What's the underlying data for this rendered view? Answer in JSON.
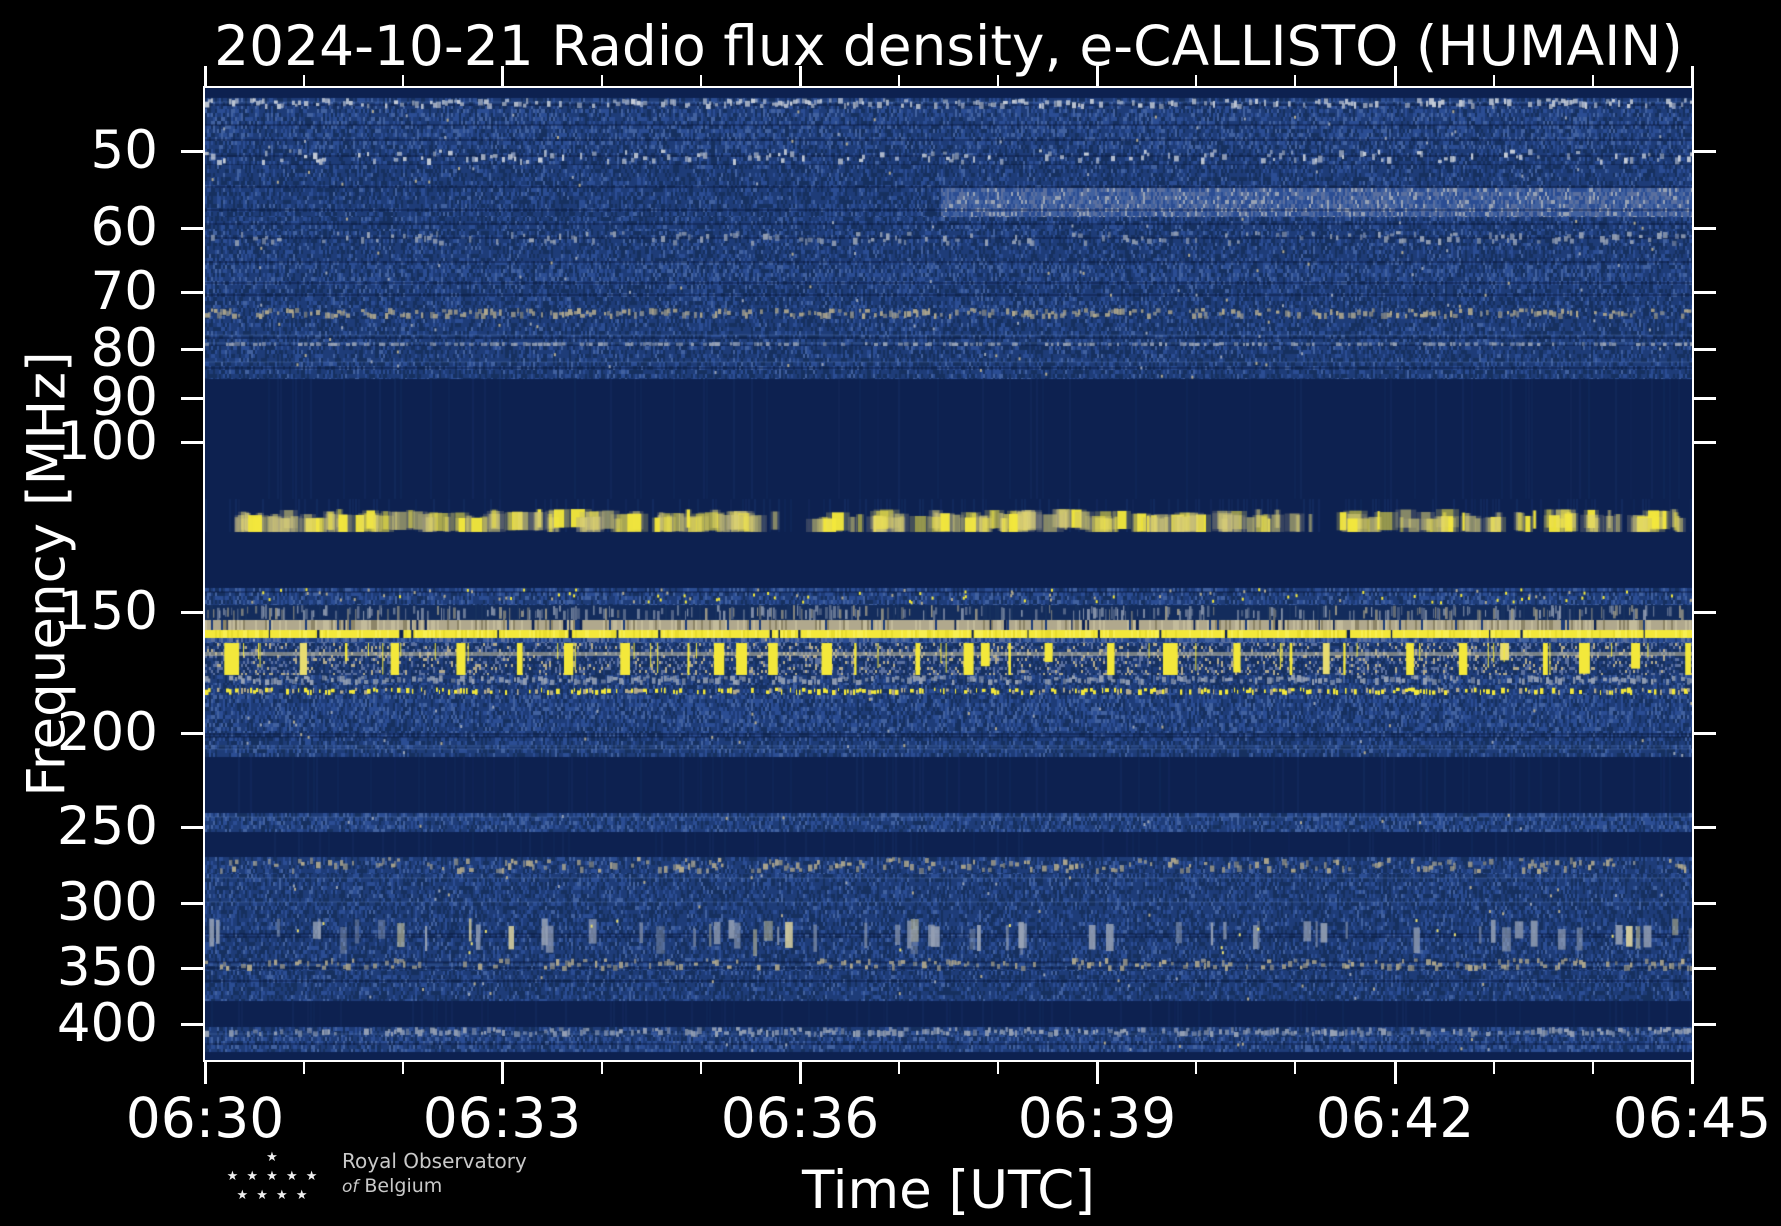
{
  "title": "2024-10-21 Radio flux density, e-CALLISTO (HUMAIN)",
  "axes": {
    "xlabel": "Time [UTC]",
    "ylabel": "Frequency [MHz]",
    "x_tick_labels": [
      "06:30",
      "06:33",
      "06:36",
      "06:39",
      "06:42",
      "06:45"
    ],
    "x_minor_per_major": 3,
    "y_tick_labels_mhz": [
      50,
      60,
      70,
      80,
      90,
      100,
      150,
      200,
      250,
      300,
      350,
      400
    ]
  },
  "branding": {
    "star_rows": [
      "★",
      "★ ★ ★ ★ ★",
      "★ ★ ★ ★"
    ],
    "line1": "Royal Observatory",
    "line2_italic": "of",
    "line2_rest": "Belgium"
  },
  "colors": {
    "background": "#000000",
    "text": "#ffffff",
    "spine": "#ffffff",
    "navy": "#0d2150",
    "shade_dark": "#16305f",
    "shade_base": "#1e3c78",
    "shade_light": "#2b4d93",
    "shade_xlight": "#41619f",
    "gray_blue": "#5a6f9e",
    "gray": "#97a2b5",
    "lightgray": "#c6cdd8",
    "tan": "#b0a88d",
    "yellow": "#f3e83b",
    "paleyellow": "#e7dc71"
  },
  "chart_data": {
    "type": "heatmap",
    "subtype": "radio-spectrogram",
    "date": "2024-10-21",
    "instrument": "e-CALLISTO",
    "station": "HUMAIN",
    "x_range_utc": [
      "06:30",
      "06:45"
    ],
    "x_major_tick_interval_min": 3,
    "x_minor_tick_interval_min": 1,
    "y_scale": "log",
    "y_range_mhz": [
      43,
      436
    ],
    "y_axis_inverted": true,
    "legend": "none",
    "features": [
      "broadband background noise 44-86 MHz with banded structure",
      "dashed tan RFI line near 73 MHz",
      "quiet (dark) zones 86-114, 124-142, 212-242, 253-269, 379-403 MHz",
      "aeronautical-band speckled yellow bursts 114-124 MHz",
      "strong continuous RFI line (bright yellow) ~156-160 MHz",
      "intermittent strong RFI bars 161-174 MHz",
      "speckled yellow dotted line ~180 MHz",
      "weak noise bands near 250 MHz, 269-353 MHz and 403-428 MHz"
    ],
    "bands": [
      {
        "f1": 43,
        "f2": 44,
        "style": "solid"
      },
      {
        "f1": 44,
        "f2": 45.2,
        "style": "specks",
        "color": "lightgray",
        "p": 0.45
      },
      {
        "f1": 45.2,
        "f2": 49.7,
        "style": "noise",
        "lv": 2
      },
      {
        "f1": 49.7,
        "f2": 51.7,
        "style": "specks",
        "color": "lightgray",
        "p": 0.3
      },
      {
        "f1": 51.7,
        "f2": 54.6,
        "style": "noise",
        "lv": 1
      },
      {
        "f1": 54.6,
        "f2": 58.5,
        "style": "noise_step",
        "split": 0.495
      },
      {
        "f1": 58.5,
        "f2": 60.5,
        "style": "noise",
        "lv": 1
      },
      {
        "f1": 60.5,
        "f2": 62.6,
        "style": "specks",
        "color": "gray",
        "p": 0.32
      },
      {
        "f1": 62.6,
        "f2": 65,
        "style": "noise",
        "lv": 1
      },
      {
        "f1": 65,
        "f2": 68.8,
        "style": "noise",
        "lv": 2
      },
      {
        "f1": 68.8,
        "f2": 72.7,
        "style": "noise",
        "lv": 1
      },
      {
        "f1": 72.7,
        "f2": 74.5,
        "style": "specks",
        "color": "tan",
        "p": 0.55
      },
      {
        "f1": 74.5,
        "f2": 78.7,
        "style": "noise",
        "lv": 1
      },
      {
        "f1": 78.7,
        "f2": 79.6,
        "style": "specks",
        "color": "gray",
        "p": 0.4
      },
      {
        "f1": 79.6,
        "f2": 86,
        "style": "noise",
        "lv": 1
      },
      {
        "f1": 86,
        "f2": 114.5,
        "style": "solid_faint"
      },
      {
        "f1": 114.5,
        "f2": 124,
        "style": "aviation"
      },
      {
        "f1": 124,
        "f2": 141.6,
        "style": "solid"
      },
      {
        "f1": 141.6,
        "f2": 147.5,
        "style": "noise_yticks"
      },
      {
        "f1": 147.5,
        "f2": 152.8,
        "style": "grayhash"
      },
      {
        "f1": 152.8,
        "f2": 156.5,
        "style": "tanrow"
      },
      {
        "f1": 156.5,
        "f2": 159.5,
        "style": "yellow_line"
      },
      {
        "f1": 159.5,
        "f2": 161.4,
        "style": "noise",
        "lv": 3
      },
      {
        "f1": 161.4,
        "f2": 174.2,
        "style": "barcode"
      },
      {
        "f1": 174.2,
        "f2": 178.4,
        "style": "specks",
        "color": "gray",
        "p": 0.55
      },
      {
        "f1": 178.4,
        "f2": 182.7,
        "style": "dotline"
      },
      {
        "f1": 182.7,
        "f2": 200,
        "style": "noise",
        "lv": 2
      },
      {
        "f1": 200,
        "f2": 212,
        "style": "noise",
        "lv": 1
      },
      {
        "f1": 212,
        "f2": 242,
        "style": "solid_faint"
      },
      {
        "f1": 242,
        "f2": 253,
        "style": "noise",
        "lv": 2
      },
      {
        "f1": 253,
        "f2": 269,
        "style": "solid_faint"
      },
      {
        "f1": 269,
        "f2": 280,
        "style": "specks",
        "color": "tan",
        "p": 0.45
      },
      {
        "f1": 280,
        "f2": 311,
        "style": "noise",
        "lv": 1
      },
      {
        "f1": 311,
        "f2": 342,
        "style": "noise_blobs"
      },
      {
        "f1": 342,
        "f2": 353,
        "style": "specks",
        "color": "tan",
        "p": 0.4
      },
      {
        "f1": 353,
        "f2": 379,
        "style": "noise",
        "lv": 1
      },
      {
        "f1": 379,
        "f2": 403,
        "style": "solid_faint"
      },
      {
        "f1": 403,
        "f2": 413,
        "style": "specks",
        "color": "gray",
        "p": 0.5
      },
      {
        "f1": 413,
        "f2": 428,
        "style": "noise",
        "lv": 2
      },
      {
        "f1": 428,
        "f2": 436,
        "style": "solid"
      }
    ]
  }
}
